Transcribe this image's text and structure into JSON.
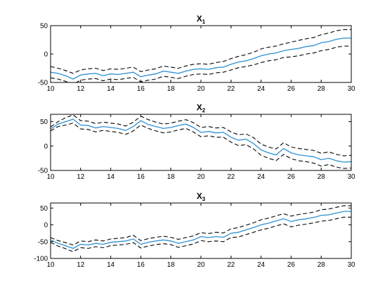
{
  "chart_data": [
    {
      "type": "line",
      "title": "X",
      "title_subscript": "1",
      "xlim": [
        10,
        30
      ],
      "ylim": [
        -50,
        50
      ],
      "xticks": [
        10,
        12,
        14,
        16,
        18,
        20,
        22,
        24,
        26,
        28,
        30
      ],
      "yticks": [
        -50,
        0,
        50
      ],
      "x": [
        10,
        10.5,
        11,
        11.5,
        12,
        12.5,
        13,
        13.5,
        14,
        14.5,
        15,
        15.5,
        16,
        16.5,
        17,
        17.5,
        18,
        18.5,
        19,
        19.5,
        20,
        20.5,
        21,
        21.5,
        22,
        22.5,
        23,
        23.5,
        24,
        24.5,
        25,
        25.5,
        26,
        26.5,
        27,
        27.5,
        28,
        28.5,
        29,
        29.5,
        30
      ],
      "series": [
        {
          "values": [
            -32,
            -34,
            -38,
            -44,
            -37,
            -35,
            -34,
            -38,
            -35,
            -36,
            -34,
            -32,
            -40,
            -37,
            -35,
            -30,
            -32,
            -34,
            -30,
            -27,
            -26,
            -27,
            -24,
            -23,
            -18,
            -14,
            -12,
            -8,
            -3,
            0,
            2,
            6,
            8,
            10,
            13,
            15,
            20,
            22,
            26,
            28,
            28
          ]
        },
        {
          "values": [
            -22,
            -25,
            -29,
            -34,
            -28,
            -26,
            -25,
            -29,
            -26,
            -27,
            -25,
            -23,
            -31,
            -28,
            -26,
            -21,
            -23,
            -25,
            -21,
            -18,
            -17,
            -18,
            -15,
            -13,
            -8,
            -4,
            -1,
            3,
            9,
            12,
            14,
            18,
            21,
            24,
            27,
            29,
            34,
            37,
            41,
            43,
            43
          ]
        },
        {
          "values": [
            -42,
            -44,
            -48,
            -53,
            -46,
            -44,
            -43,
            -47,
            -44,
            -45,
            -43,
            -41,
            -49,
            -46,
            -44,
            -39,
            -41,
            -43,
            -39,
            -36,
            -35,
            -36,
            -33,
            -32,
            -28,
            -24,
            -22,
            -19,
            -15,
            -12,
            -10,
            -6,
            -5,
            -3,
            0,
            2,
            6,
            8,
            12,
            14,
            14
          ]
        }
      ]
    },
    {
      "type": "line",
      "title": "X",
      "title_subscript": "2",
      "xlim": [
        10,
        30
      ],
      "ylim": [
        -50,
        65
      ],
      "xticks": [
        10,
        12,
        14,
        16,
        18,
        20,
        22,
        24,
        26,
        28,
        30
      ],
      "yticks": [
        -50,
        0,
        50
      ],
      "x": [
        10,
        10.5,
        11,
        11.5,
        12,
        12.5,
        13,
        13.5,
        14,
        14.5,
        15,
        15.5,
        16,
        16.5,
        17,
        17.5,
        18,
        18.5,
        19,
        19.5,
        20,
        20.5,
        21,
        21.5,
        22,
        22.5,
        23,
        23.5,
        24,
        24.5,
        25,
        25.5,
        26,
        26.5,
        27,
        27.5,
        28,
        28.5,
        29,
        29.5,
        30
      ],
      "series": [
        {
          "values": [
            35,
            45,
            50,
            55,
            43,
            42,
            37,
            40,
            38,
            36,
            32,
            40,
            52,
            44,
            40,
            36,
            38,
            42,
            45,
            38,
            28,
            30,
            27,
            28,
            18,
            12,
            14,
            5,
            -8,
            -14,
            -18,
            -5,
            -14,
            -18,
            -20,
            -22,
            -28,
            -25,
            -30,
            -33,
            -32
          ]
        },
        {
          "values": [
            39,
            50,
            58,
            64,
            52,
            51,
            46,
            49,
            47,
            45,
            41,
            49,
            61,
            54,
            49,
            45,
            47,
            51,
            54,
            48,
            38,
            40,
            37,
            38,
            29,
            23,
            25,
            17,
            4,
            -2,
            -6,
            7,
            -2,
            -5,
            -7,
            -9,
            -15,
            -12,
            -17,
            -20,
            -19
          ]
        },
        {
          "values": [
            31,
            40,
            43,
            47,
            35,
            34,
            29,
            32,
            30,
            28,
            24,
            31,
            43,
            36,
            31,
            27,
            29,
            33,
            36,
            29,
            19,
            21,
            18,
            18,
            8,
            1,
            3,
            -6,
            -19,
            -25,
            -30,
            -17,
            -26,
            -30,
            -32,
            -35,
            -41,
            -38,
            -43,
            -46,
            -45
          ]
        }
      ]
    },
    {
      "type": "line",
      "title": "X",
      "title_subscript": "3",
      "xlim": [
        10,
        30
      ],
      "ylim": [
        -100,
        65
      ],
      "xticks": [
        10,
        12,
        14,
        16,
        18,
        20,
        22,
        24,
        26,
        28,
        30
      ],
      "yticks": [
        -100,
        -50,
        0,
        50
      ],
      "x": [
        10,
        10.5,
        11,
        11.5,
        12,
        12.5,
        13,
        13.5,
        14,
        14.5,
        15,
        15.5,
        16,
        16.5,
        17,
        17.5,
        18,
        18.5,
        19,
        19.5,
        20,
        20.5,
        21,
        21.5,
        22,
        22.5,
        23,
        23.5,
        24,
        24.5,
        25,
        25.5,
        26,
        26.5,
        27,
        27.5,
        28,
        28.5,
        29,
        29.5,
        30
      ],
      "series": [
        {
          "values": [
            -45,
            -55,
            -62,
            -70,
            -58,
            -60,
            -55,
            -58,
            -52,
            -50,
            -48,
            -42,
            -58,
            -52,
            -48,
            -45,
            -48,
            -55,
            -50,
            -45,
            -35,
            -38,
            -35,
            -37,
            -25,
            -22,
            -15,
            -8,
            0,
            5,
            12,
            18,
            10,
            15,
            18,
            22,
            28,
            30,
            35,
            40,
            40
          ]
        },
        {
          "values": [
            -38,
            -47,
            -53,
            -60,
            -48,
            -50,
            -45,
            -48,
            -42,
            -40,
            -38,
            -31,
            -47,
            -41,
            -37,
            -34,
            -37,
            -43,
            -38,
            -33,
            -23,
            -26,
            -22,
            -24,
            -12,
            -8,
            -1,
            6,
            15,
            20,
            27,
            33,
            26,
            31,
            34,
            38,
            45,
            47,
            52,
            57,
            57
          ]
        },
        {
          "values": [
            -52,
            -63,
            -71,
            -80,
            -68,
            -70,
            -65,
            -68,
            -62,
            -60,
            -58,
            -53,
            -69,
            -63,
            -59,
            -56,
            -59,
            -67,
            -62,
            -57,
            -47,
            -50,
            -48,
            -50,
            -38,
            -36,
            -29,
            -22,
            -15,
            -10,
            -3,
            3,
            -6,
            -1,
            2,
            6,
            11,
            13,
            18,
            23,
            23
          ]
        }
      ]
    }
  ]
}
